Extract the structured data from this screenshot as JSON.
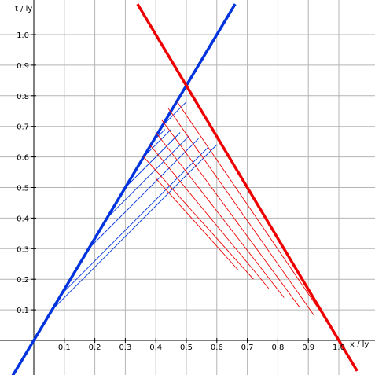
{
  "chart_data": {
    "type": "line",
    "xlabel": "x / ly",
    "ylabel": "t / ly",
    "xlim": [
      -0.1,
      1.1
    ],
    "ylim": [
      -0.1,
      1.1
    ],
    "grid": true,
    "x_ticks": [
      "0.1",
      "0.2",
      "0.3",
      "0.4",
      "0.5",
      "0.6",
      "0.7",
      "0.8",
      "0.9",
      "1.0"
    ],
    "y_ticks": [
      "0.1",
      "0.2",
      "0.3",
      "0.4",
      "0.5",
      "0.6",
      "0.7",
      "0.8",
      "0.9",
      "1.0"
    ],
    "series": [
      {
        "color": "#0033dd",
        "style": "thick",
        "x": [
          -0.1,
          0.66
        ],
        "y": [
          -0.166667,
          1.1
        ]
      },
      {
        "color": "#ee0000",
        "style": "thick",
        "x": [
          0.34,
          1.06
        ],
        "y": [
          1.1,
          -0.1
        ]
      },
      {
        "color": "#0033dd",
        "style": "thin",
        "x": [
          0.0,
          0.0
        ],
        "y": [
          0.0,
          0.0
        ]
      },
      {
        "color": "#0033dd",
        "style": "thin",
        "x": [
          0.06,
          0.6
        ],
        "y": [
          0.1,
          0.64
        ]
      },
      {
        "color": "#0033dd",
        "style": "thin",
        "x": [
          0.09,
          0.57
        ],
        "y": [
          0.15,
          0.63
        ]
      },
      {
        "color": "#0033dd",
        "style": "thin",
        "x": [
          0.18,
          0.54
        ],
        "y": [
          0.3,
          0.66
        ]
      },
      {
        "color": "#0033dd",
        "style": "thin",
        "x": [
          0.24,
          0.51
        ],
        "y": [
          0.4,
          0.67
        ]
      },
      {
        "color": "#0033dd",
        "style": "thin",
        "x": [
          0.3,
          0.48
        ],
        "y": [
          0.5,
          0.68
        ]
      },
      {
        "color": "#0033dd",
        "style": "thin",
        "x": [
          0.36,
          0.45
        ],
        "y": [
          0.6,
          0.69
        ]
      },
      {
        "color": "#0033dd",
        "style": "thin",
        "x": [
          0.39,
          0.43
        ],
        "y": [
          0.65,
          0.69
        ]
      },
      {
        "color": "#0033dd",
        "style": "thin",
        "x": [
          0.42,
          0.5
        ],
        "y": [
          0.7,
          0.78
        ]
      },
      {
        "color": "#ee0000",
        "style": "thin",
        "x": [
          0.47,
          0.97
        ],
        "y": [
          0.78,
          0.05
        ]
      },
      {
        "color": "#ee0000",
        "style": "thin",
        "x": [
          0.44,
          0.92
        ],
        "y": [
          0.76,
          0.08
        ]
      },
      {
        "color": "#ee0000",
        "style": "thin",
        "x": [
          0.42,
          0.87
        ],
        "y": [
          0.72,
          0.11
        ]
      },
      {
        "color": "#ee0000",
        "style": "thin",
        "x": [
          0.4,
          0.82
        ],
        "y": [
          0.68,
          0.14
        ]
      },
      {
        "color": "#ee0000",
        "style": "thin",
        "x": [
          0.38,
          0.77
        ],
        "y": [
          0.64,
          0.17
        ]
      },
      {
        "color": "#ee0000",
        "style": "thin",
        "x": [
          0.36,
          0.72
        ],
        "y": [
          0.6,
          0.2
        ]
      },
      {
        "color": "#ee0000",
        "style": "thin",
        "x": [
          0.4,
          0.67
        ],
        "y": [
          0.53,
          0.23
        ]
      }
    ]
  }
}
